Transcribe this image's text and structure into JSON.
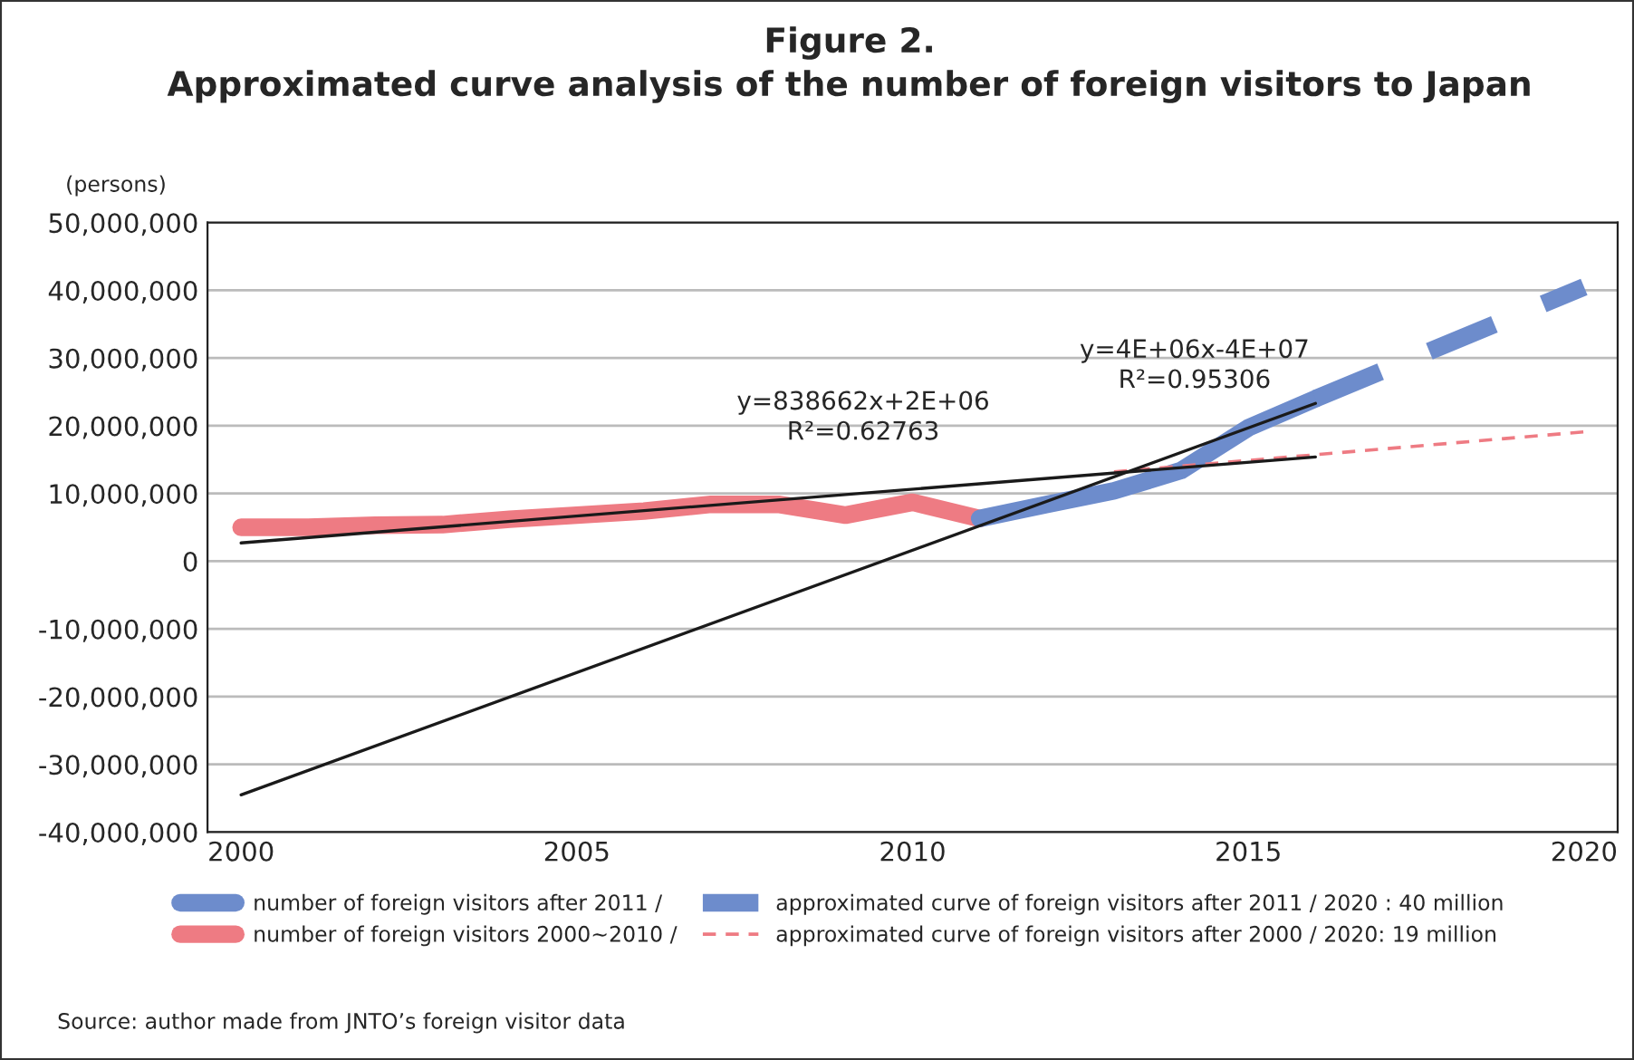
{
  "chart_data": {
    "type": "line",
    "title": "Figure 2.\nApproximated curve analysis of the number of foreign visitors to Japan",
    "ylabel": "(persons)",
    "x": [
      2000,
      2001,
      2002,
      2003,
      2004,
      2005,
      2006,
      2007,
      2008,
      2009,
      2010,
      2011
    ],
    "series": [
      {
        "name": "number of foreign visitors 2000~2010 /",
        "color": "#ee7b83",
        "line_style": "solid",
        "values": [
          5000000,
          5000000,
          5300000,
          5400000,
          6200000,
          6800000,
          7400000,
          8400000,
          8400000,
          6800000,
          8700000,
          6300000
        ]
      },
      {
        "name": "number of foreign visitors after 2011 /",
        "color": "#6d8ccc",
        "line_style": "solid",
        "x": [
          2011,
          2012,
          2013,
          2014,
          2015,
          2016
        ],
        "values": [
          6300000,
          8400000,
          10400000,
          13400000,
          19700000,
          24000000
        ]
      },
      {
        "name": "approximated curve of foreign visitors after 2011 / 2020 : 40 million",
        "color": "#6d8ccc",
        "line_style": "dashed",
        "x": [
          2016,
          2020
        ],
        "values": [
          24000000,
          40500000
        ]
      },
      {
        "name": "approximated curve of foreign visitors after 2000 / 2020: 19 million",
        "color": "#ee7b83",
        "line_style": "dashed",
        "x": [
          2013,
          2020
        ],
        "values": [
          13200000,
          19100000
        ]
      },
      {
        "color": "#1a1a1a",
        "line_style": "solid",
        "x": [
          2000,
          2016
        ],
        "values": [
          2700000,
          15400000
        ]
      },
      {
        "color": "#1a1a1a",
        "line_style": "solid",
        "x": [
          2000,
          2016
        ],
        "values": [
          -34500000,
          23300000
        ]
      }
    ],
    "xlim": [
      1999.5,
      2020.5
    ],
    "xticks": [
      2000,
      2005,
      2010,
      2015,
      2020
    ],
    "ylim": [
      -40000000,
      50000000
    ],
    "yticks": [
      {
        "value": -40000000,
        "label": "-40,000,000"
      },
      {
        "value": -30000000,
        "label": "-30,000,000"
      },
      {
        "value": -20000000,
        "label": "-20,000,000"
      },
      {
        "value": -10000000,
        "label": "-10,000,000"
      },
      {
        "value": 0,
        "label": "0"
      },
      {
        "value": 10000000,
        "label": "10,000,000"
      },
      {
        "value": 20000000,
        "label": "20,000,000"
      },
      {
        "value": 30000000,
        "label": "30,000,000"
      },
      {
        "value": 40000000,
        "label": "40,000,000"
      },
      {
        "value": 50000000,
        "label": "50,000,000"
      }
    ],
    "grid": "y",
    "legend": "bottom",
    "annotations": [
      "y=838662x+2E+06\nR²=0.62763",
      "y=4E+06x-4E+07\nR²=0.95306",
      "Source: author made from JNTO’s foreign visitor data"
    ]
  }
}
